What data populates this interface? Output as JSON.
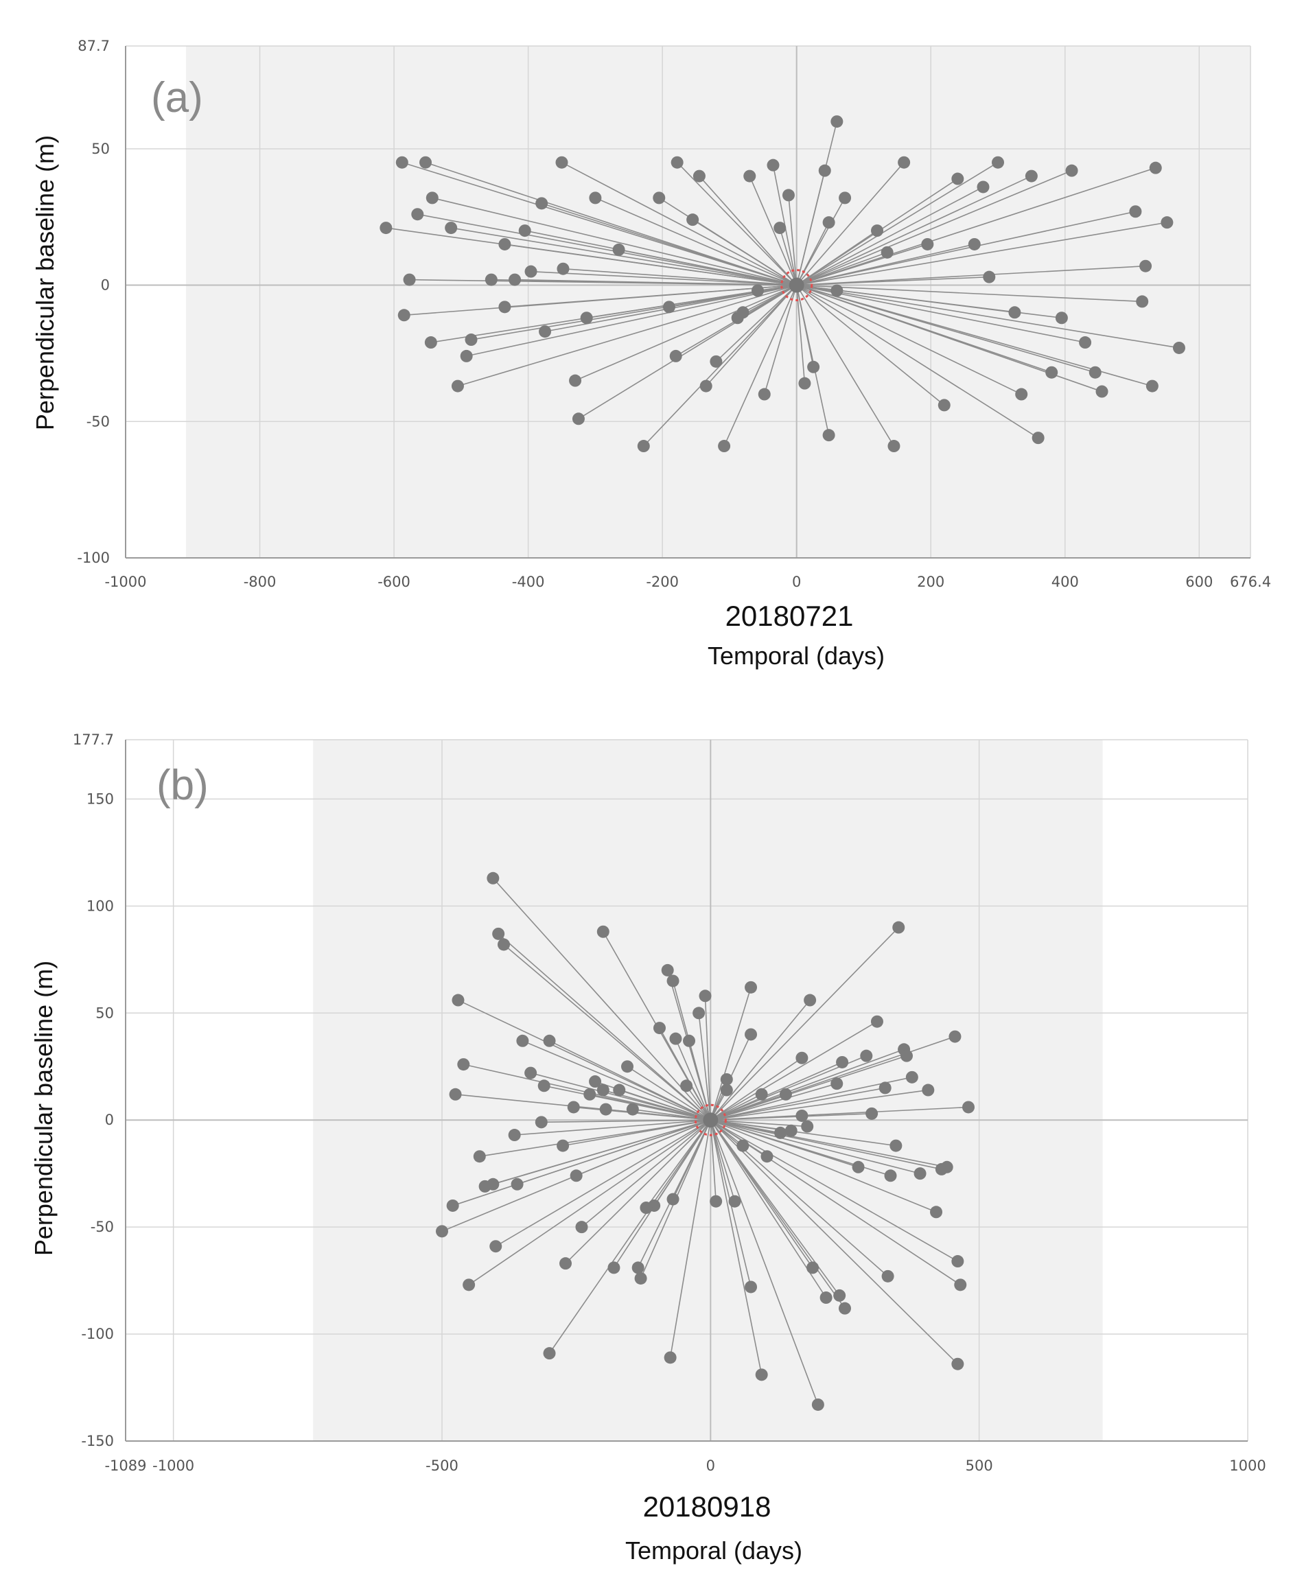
{
  "chart_data": [
    {
      "type": "scatter",
      "panel_label": "(a)",
      "subtitle": "20180721",
      "xlabel": "Temporal (days)",
      "ylabel": "Perpendicular baseline (m)",
      "xlim": [
        -1000,
        676.4
      ],
      "ylim": [
        -100,
        87.7
      ],
      "shaded_x_range": [
        -910,
        676.4
      ],
      "grid": true,
      "xticks": [
        -1000,
        -800,
        -600,
        -400,
        -200,
        0,
        200,
        400,
        600,
        676.4
      ],
      "xtick_labels": [
        "-1000",
        "-800",
        "-600",
        "-400",
        "-200",
        "0",
        "200",
        "400",
        "600",
        "676.4"
      ],
      "yticks": [
        -100,
        -50,
        0,
        50,
        87.7
      ],
      "ytick_labels": [
        "-100",
        "-50",
        "0",
        "50",
        "87.7"
      ],
      "reference": [
        0,
        0
      ],
      "point_color": "#7b7b7b",
      "line_color": "#8c8c8c",
      "reference_color": "#e05050",
      "points": [
        [
          -588,
          45
        ],
        [
          -553,
          45
        ],
        [
          -543,
          32
        ],
        [
          -565,
          26
        ],
        [
          -612,
          21
        ],
        [
          -515,
          21
        ],
        [
          -350,
          45
        ],
        [
          -300,
          32
        ],
        [
          -380,
          30
        ],
        [
          -405,
          20
        ],
        [
          -435,
          15
        ],
        [
          -265,
          13
        ],
        [
          -178,
          45
        ],
        [
          -145,
          40
        ],
        [
          -205,
          32
        ],
        [
          -155,
          24
        ],
        [
          -70,
          40
        ],
        [
          -35,
          44
        ],
        [
          -12,
          33
        ],
        [
          -25,
          21
        ],
        [
          60,
          60
        ],
        [
          42,
          42
        ],
        [
          72,
          32
        ],
        [
          48,
          23
        ],
        [
          160,
          45
        ],
        [
          300,
          45
        ],
        [
          350,
          40
        ],
        [
          410,
          42
        ],
        [
          535,
          43
        ],
        [
          240,
          39
        ],
        [
          278,
          36
        ],
        [
          505,
          27
        ],
        [
          552,
          23
        ],
        [
          120,
          20
        ],
        [
          195,
          15
        ],
        [
          265,
          15
        ],
        [
          135,
          12
        ],
        [
          287,
          3
        ],
        [
          520,
          7
        ],
        [
          -577,
          2
        ],
        [
          -455,
          2
        ],
        [
          -420,
          2
        ],
        [
          -396,
          5
        ],
        [
          -348,
          6
        ],
        [
          -58,
          -2
        ],
        [
          60,
          -2
        ],
        [
          -585,
          -11
        ],
        [
          -545,
          -21
        ],
        [
          -485,
          -20
        ],
        [
          -492,
          -26
        ],
        [
          -505,
          -37
        ],
        [
          -435,
          -8
        ],
        [
          -375,
          -17
        ],
        [
          -313,
          -12
        ],
        [
          -190,
          -8
        ],
        [
          -180,
          -26
        ],
        [
          -120,
          -28
        ],
        [
          -135,
          -37
        ],
        [
          -88,
          -12
        ],
        [
          -80,
          -10
        ],
        [
          -48,
          -40
        ],
        [
          12,
          -36
        ],
        [
          25,
          -30
        ],
        [
          48,
          -55
        ],
        [
          325,
          -10
        ],
        [
          395,
          -12
        ],
        [
          430,
          -21
        ],
        [
          515,
          -6
        ],
        [
          570,
          -23
        ],
        [
          445,
          -32
        ],
        [
          380,
          -32
        ],
        [
          530,
          -37
        ],
        [
          455,
          -39
        ],
        [
          335,
          -40
        ],
        [
          220,
          -44
        ],
        [
          360,
          -56
        ],
        [
          145,
          -59
        ],
        [
          -108,
          -59
        ],
        [
          -228,
          -59
        ],
        [
          -325,
          -49
        ],
        [
          -330,
          -35
        ]
      ]
    },
    {
      "type": "scatter",
      "panel_label": "(b)",
      "subtitle": "20180918",
      "xlabel": "Temporal (days)",
      "ylabel": "Perpendicular baseline (m)",
      "xlim": [
        -1089,
        1000
      ],
      "ylim": [
        -150,
        177.7
      ],
      "shaded_x_range": [
        -740,
        730
      ],
      "grid": true,
      "xticks": [
        -1089,
        -1000,
        -500,
        0,
        500,
        1000
      ],
      "xtick_labels": [
        "-1089",
        "-1000",
        "-500",
        "0",
        "500",
        "1000"
      ],
      "yticks": [
        -150,
        -100,
        -50,
        0,
        50,
        100,
        150,
        177.7
      ],
      "ytick_labels": [
        "-150",
        "-100",
        "-50",
        "0",
        "50",
        "100",
        "150",
        "177.7"
      ],
      "reference": [
        0,
        0
      ],
      "point_color": "#7b7b7b",
      "line_color": "#8c8c8c",
      "reference_color": "#e05050",
      "points": [
        [
          -405,
          113
        ],
        [
          -395,
          87
        ],
        [
          -385,
          82
        ],
        [
          -200,
          88
        ],
        [
          -470,
          56
        ],
        [
          -350,
          37
        ],
        [
          -80,
          70
        ],
        [
          -70,
          65
        ],
        [
          -95,
          43
        ],
        [
          -65,
          38
        ],
        [
          -10,
          58
        ],
        [
          -22,
          50
        ],
        [
          -40,
          37
        ],
        [
          75,
          62
        ],
        [
          75,
          40
        ],
        [
          185,
          56
        ],
        [
          310,
          46
        ],
        [
          350,
          90
        ],
        [
          455,
          39
        ],
        [
          360,
          33
        ],
        [
          290,
          30
        ],
        [
          245,
          27
        ],
        [
          170,
          29
        ],
        [
          -460,
          26
        ],
        [
          -475,
          12
        ],
        [
          -335,
          22
        ],
        [
          -310,
          16
        ],
        [
          -300,
          37
        ],
        [
          -155,
          25
        ],
        [
          -215,
          18
        ],
        [
          -200,
          14
        ],
        [
          -225,
          12
        ],
        [
          -170,
          14
        ],
        [
          -145,
          5
        ],
        [
          -195,
          5
        ],
        [
          -255,
          6
        ],
        [
          -45,
          16
        ],
        [
          30,
          19
        ],
        [
          30,
          14
        ],
        [
          95,
          12
        ],
        [
          140,
          12
        ],
        [
          235,
          17
        ],
        [
          325,
          15
        ],
        [
          375,
          20
        ],
        [
          405,
          14
        ],
        [
          365,
          30
        ],
        [
          480,
          6
        ],
        [
          300,
          3
        ],
        [
          170,
          2
        ],
        [
          -315,
          -1
        ],
        [
          -365,
          -7
        ],
        [
          -430,
          -17
        ],
        [
          -405,
          -30
        ],
        [
          -420,
          -31
        ],
        [
          -360,
          -30
        ],
        [
          -275,
          -12
        ],
        [
          -250,
          -26
        ],
        [
          -70,
          -37
        ],
        [
          -105,
          -40
        ],
        [
          -120,
          -41
        ],
        [
          10,
          -38
        ],
        [
          45,
          -38
        ],
        [
          60,
          -12
        ],
        [
          105,
          -17
        ],
        [
          130,
          -6
        ],
        [
          150,
          -5
        ],
        [
          180,
          -3
        ],
        [
          275,
          -22
        ],
        [
          345,
          -12
        ],
        [
          335,
          -26
        ],
        [
          390,
          -25
        ],
        [
          430,
          -23
        ],
        [
          440,
          -22
        ],
        [
          420,
          -43
        ],
        [
          -480,
          -40
        ],
        [
          -500,
          -52
        ],
        [
          -400,
          -59
        ],
        [
          -450,
          -77
        ],
        [
          -240,
          -50
        ],
        [
          -270,
          -67
        ],
        [
          -180,
          -69
        ],
        [
          -135,
          -69
        ],
        [
          -130,
          -74
        ],
        [
          -300,
          -109
        ],
        [
          -75,
          -111
        ],
        [
          75,
          -78
        ],
        [
          95,
          -119
        ],
        [
          190,
          -69
        ],
        [
          215,
          -83
        ],
        [
          240,
          -82
        ],
        [
          250,
          -88
        ],
        [
          330,
          -73
        ],
        [
          460,
          -66
        ],
        [
          465,
          -77
        ],
        [
          460,
          -114
        ],
        [
          200,
          -133
        ]
      ]
    }
  ]
}
